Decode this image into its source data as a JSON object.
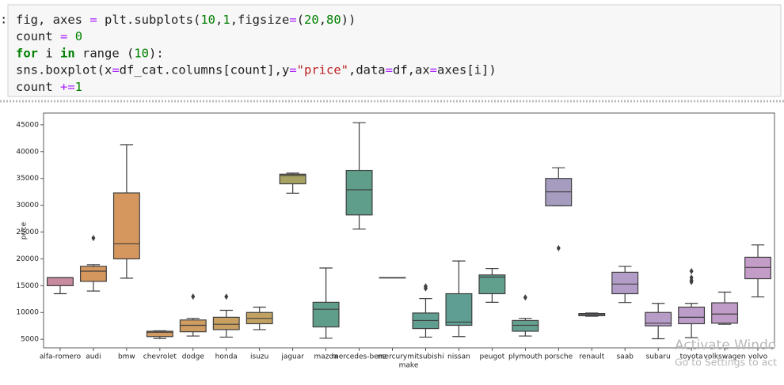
{
  "code": {
    "prompt": ":",
    "lines": [
      "fig, axes = plt.subplots(10,1,figsize=(20,80))",
      "count = 0",
      "for i in range (10):",
      "    sns.boxplot(x=df_cat.columns[count],y=\"price\",data=df,ax=axes[i])",
      "    count +=1"
    ]
  },
  "watermark": [
    "Activate Windo",
    "Go to Settings to act"
  ],
  "chart_data": {
    "type": "box",
    "xlabel": "make",
    "ylabel": "price",
    "categories": [
      "alfa-romero",
      "audi",
      "bmw",
      "chevrolet",
      "dodge",
      "honda",
      "isuzu",
      "jaguar",
      "mazda",
      "mercedes-benz",
      "mercury",
      "mitsubishi",
      "nissan",
      "peugot",
      "plymouth",
      "porsche",
      "renault",
      "saab",
      "subaru",
      "toyota",
      "volkswagen",
      "volvo"
    ],
    "boxes": [
      {
        "low": 13500,
        "q1": 14997,
        "median": 16500,
        "q3": 16500,
        "high": 16500,
        "outliers": [],
        "color": "#c88aa0"
      },
      {
        "low": 14000,
        "q1": 15800,
        "median": 17700,
        "q3": 18600,
        "high": 18900,
        "outliers": [
          23875
        ],
        "color": "#d6975e"
      },
      {
        "low": 16400,
        "q1": 20000,
        "median": 22800,
        "q3": 32300,
        "high": 41300,
        "outliers": [],
        "color": "#d6975e"
      },
      {
        "low": 5150,
        "q1": 5500,
        "median": 6300,
        "q3": 6500,
        "high": 6575,
        "outliers": [],
        "color": "#d39a62"
      },
      {
        "low": 5600,
        "q1": 6400,
        "median": 7600,
        "q3": 8600,
        "high": 8900,
        "outliers": [
          12960
        ],
        "color": "#cf9c62"
      },
      {
        "low": 5400,
        "q1": 6800,
        "median": 7800,
        "q3": 9100,
        "high": 10400,
        "outliers": [
          12945
        ],
        "color": "#c99f62"
      },
      {
        "low": 6800,
        "q1": 7900,
        "median": 8900,
        "q3": 10000,
        "high": 11000,
        "outliers": [],
        "color": "#c2a263"
      },
      {
        "low": 32250,
        "q1": 34000,
        "median": 35550,
        "q3": 35800,
        "high": 36000,
        "outliers": [],
        "color": "#a8a262"
      },
      {
        "low": 5200,
        "q1": 7300,
        "median": 10600,
        "q3": 11900,
        "high": 18300,
        "outliers": [],
        "color": "#5f9e8a"
      },
      {
        "low": 25550,
        "q1": 28200,
        "median": 32900,
        "q3": 36500,
        "high": 45400,
        "outliers": [],
        "color": "#5f9e8a"
      },
      {
        "low": 16500,
        "q1": 16500,
        "median": 16500,
        "q3": 16500,
        "high": 16500,
        "outliers": [],
        "color": "#5f9e8e"
      },
      {
        "low": 5400,
        "q1": 7000,
        "median": 8500,
        "q3": 9900,
        "high": 12600,
        "outliers": [
          14489,
          14869
        ],
        "color": "#5f9e90"
      },
      {
        "low": 5500,
        "q1": 7600,
        "median": 8200,
        "q3": 13500,
        "high": 19600,
        "outliers": [],
        "color": "#5f9e92"
      },
      {
        "low": 11900,
        "q1": 13500,
        "median": 16600,
        "q3": 17000,
        "high": 18200,
        "outliers": [],
        "color": "#62a08e"
      },
      {
        "low": 5600,
        "q1": 6500,
        "median": 7600,
        "q3": 8500,
        "high": 8900,
        "outliers": [
          12800
        ],
        "color": "#64a090"
      },
      {
        "low": 29900,
        "q1": 29900,
        "median": 32500,
        "q3": 35000,
        "high": 37000,
        "outliers": [
          22000
        ],
        "color": "#a59cbf"
      },
      {
        "low": 9295,
        "q1": 9400,
        "median": 9600,
        "q3": 9800,
        "high": 9895,
        "outliers": [],
        "color": "#aa9cc4"
      },
      {
        "low": 11850,
        "q1": 13500,
        "median": 15300,
        "q3": 17500,
        "high": 18600,
        "outliers": [],
        "color": "#b29cc8"
      },
      {
        "low": 5100,
        "q1": 7500,
        "median": 8000,
        "q3": 10000,
        "high": 11700,
        "outliers": [],
        "color": "#b89cc8"
      },
      {
        "low": 5300,
        "q1": 7900,
        "median": 9100,
        "q3": 11000,
        "high": 11700,
        "outliers": [
          15700,
          16000,
          16500,
          17700
        ],
        "color": "#bc9cc8"
      },
      {
        "low": 7800,
        "q1": 8000,
        "median": 9700,
        "q3": 11800,
        "high": 13800,
        "outliers": [],
        "color": "#c09cc8"
      },
      {
        "low": 12900,
        "q1": 16300,
        "median": 18400,
        "q3": 20300,
        "high": 22600,
        "outliers": [],
        "color": "#c49cc8"
      }
    ],
    "ylim": [
      3400,
      47200
    ],
    "yticks": [
      5000,
      10000,
      15000,
      20000,
      25000,
      30000,
      35000,
      40000,
      45000
    ]
  }
}
